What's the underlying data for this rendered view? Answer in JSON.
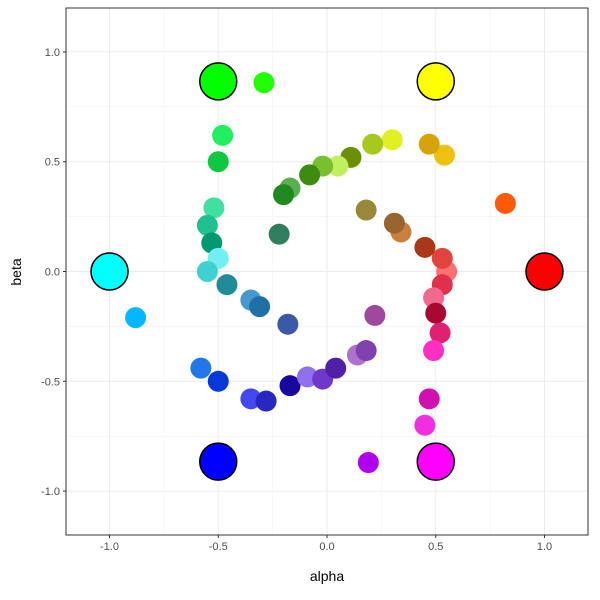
{
  "chart_data": {
    "type": "scatter",
    "title": "",
    "xlabel": "alpha",
    "ylabel": "beta",
    "xlim": [
      -1.2,
      1.2
    ],
    "ylim": [
      -1.2,
      1.2
    ],
    "xticks": [
      -1.0,
      -0.5,
      0.0,
      0.5,
      1.0
    ],
    "yticks": [
      -1.0,
      -0.5,
      0.0,
      0.5,
      1.0
    ],
    "xtick_labels": [
      "-1.0",
      "-0.5",
      "0.0",
      "0.5",
      "1.0"
    ],
    "ytick_labels": [
      "-1.0",
      "-0.5",
      "0.0",
      "0.5",
      "1.0"
    ],
    "grid": true,
    "legend": "none",
    "reference_points": [
      {
        "x": 1.0,
        "y": 0.0,
        "color": "#ff0000"
      },
      {
        "x": 0.5,
        "y": 0.866,
        "color": "#ffff00"
      },
      {
        "x": -0.5,
        "y": 0.866,
        "color": "#00ff00"
      },
      {
        "x": -1.0,
        "y": 0.0,
        "color": "#00ffff"
      },
      {
        "x": -0.5,
        "y": -0.866,
        "color": "#0000ff"
      },
      {
        "x": 0.5,
        "y": -0.866,
        "color": "#ff00ff"
      }
    ],
    "points": [
      {
        "x": 0.82,
        "y": 0.31,
        "color": "#ff5a08"
      },
      {
        "x": 0.55,
        "y": 0.0,
        "color": "#ff7070"
      },
      {
        "x": 0.53,
        "y": 0.06,
        "color": "#e0443c"
      },
      {
        "x": 0.53,
        "y": -0.06,
        "color": "#e0304c"
      },
      {
        "x": 0.49,
        "y": -0.12,
        "color": "#f06a90"
      },
      {
        "x": 0.5,
        "y": -0.19,
        "color": "#a80830"
      },
      {
        "x": 0.52,
        "y": -0.28,
        "color": "#e02070"
      },
      {
        "x": 0.49,
        "y": -0.36,
        "color": "#ff30c0"
      },
      {
        "x": 0.47,
        "y": -0.58,
        "color": "#d010b0"
      },
      {
        "x": 0.45,
        "y": -0.7,
        "color": "#f030e0"
      },
      {
        "x": 0.45,
        "y": 0.11,
        "color": "#a83818"
      },
      {
        "x": 0.34,
        "y": 0.18,
        "color": "#c8803c"
      },
      {
        "x": 0.31,
        "y": 0.22,
        "color": "#9a6430"
      },
      {
        "x": 0.18,
        "y": 0.28,
        "color": "#988838"
      },
      {
        "x": 0.54,
        "y": 0.53,
        "color": "#f0c010"
      },
      {
        "x": 0.47,
        "y": 0.58,
        "color": "#d4a408"
      },
      {
        "x": 0.3,
        "y": 0.6,
        "color": "#e0f020"
      },
      {
        "x": 0.21,
        "y": 0.58,
        "color": "#a8c820"
      },
      {
        "x": 0.11,
        "y": 0.52,
        "color": "#6a9000"
      },
      {
        "x": 0.05,
        "y": 0.48,
        "color": "#c0f060"
      },
      {
        "x": -0.02,
        "y": 0.48,
        "color": "#78c030"
      },
      {
        "x": -0.08,
        "y": 0.44,
        "color": "#3c8c10"
      },
      {
        "x": -0.17,
        "y": 0.38,
        "color": "#58b050"
      },
      {
        "x": -0.2,
        "y": 0.35,
        "color": "#208a20"
      },
      {
        "x": -0.22,
        "y": 0.17,
        "color": "#308060"
      },
      {
        "x": -0.29,
        "y": 0.86,
        "color": "#22ff00"
      },
      {
        "x": -0.48,
        "y": 0.62,
        "color": "#20f060"
      },
      {
        "x": -0.5,
        "y": 0.5,
        "color": "#10c840"
      },
      {
        "x": -0.52,
        "y": 0.29,
        "color": "#40e0a0"
      },
      {
        "x": -0.55,
        "y": 0.21,
        "color": "#20c090"
      },
      {
        "x": -0.53,
        "y": 0.13,
        "color": "#009870"
      },
      {
        "x": -0.5,
        "y": 0.06,
        "color": "#70f0f0"
      },
      {
        "x": -0.55,
        "y": 0.0,
        "color": "#40d0d0"
      },
      {
        "x": -0.46,
        "y": -0.06,
        "color": "#208c98"
      },
      {
        "x": -0.88,
        "y": -0.21,
        "color": "#00b8ff"
      },
      {
        "x": -0.35,
        "y": -0.13,
        "color": "#4898d0"
      },
      {
        "x": -0.31,
        "y": -0.16,
        "color": "#2070a8"
      },
      {
        "x": -0.18,
        "y": -0.24,
        "color": "#3c58a8"
      },
      {
        "x": -0.58,
        "y": -0.44,
        "color": "#2078e8"
      },
      {
        "x": -0.5,
        "y": -0.5,
        "color": "#0838d8"
      },
      {
        "x": -0.35,
        "y": -0.58,
        "color": "#4448f0"
      },
      {
        "x": -0.28,
        "y": -0.59,
        "color": "#2828c0"
      },
      {
        "x": -0.17,
        "y": -0.52,
        "color": "#1808a0"
      },
      {
        "x": -0.09,
        "y": -0.48,
        "color": "#9070f0"
      },
      {
        "x": -0.02,
        "y": -0.49,
        "color": "#7038c8"
      },
      {
        "x": 0.04,
        "y": -0.44,
        "color": "#5020a8"
      },
      {
        "x": 0.14,
        "y": -0.38,
        "color": "#b070d0"
      },
      {
        "x": 0.18,
        "y": -0.36,
        "color": "#8040b0"
      },
      {
        "x": 0.22,
        "y": -0.2,
        "color": "#a0489c"
      },
      {
        "x": 0.19,
        "y": -0.87,
        "color": "#b000f0"
      }
    ]
  }
}
